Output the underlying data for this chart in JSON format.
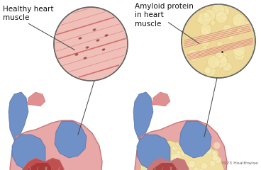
{
  "bg_color": "#ffffff",
  "label_healthy": "Healthy heart\nmuscle",
  "label_amyloid": "Amyloid protein\nin heart\nmuscle",
  "copyright": "© 2023 Healthwise",
  "colors": {
    "heart_wall": "#e8a8a8",
    "heart_wall_edge": "#c87878",
    "heart_red_chamber": "#c05050",
    "heart_dark_red": "#a03030",
    "blue_vessel": "#7090c8",
    "blue_light": "#90aad8",
    "blue_dark": "#5070a8",
    "gold_base": "#c8a030",
    "gold_light": "#e0c060",
    "amyloid_cream": "#f0dfa0",
    "amyloid_light": "#f8efc0",
    "amyloid_edge": "#c8b060",
    "pink_vessel": "#e09090",
    "text_color": "#111111",
    "line_color": "#444444",
    "circle_border": "#666666",
    "healthy_muscle_bg": "#e8a8a0",
    "healthy_muscle_line": "#c07070",
    "healthy_muscle_dark": "#a05050"
  },
  "fig_width": 3.68,
  "fig_height": 2.4,
  "dpi": 100
}
